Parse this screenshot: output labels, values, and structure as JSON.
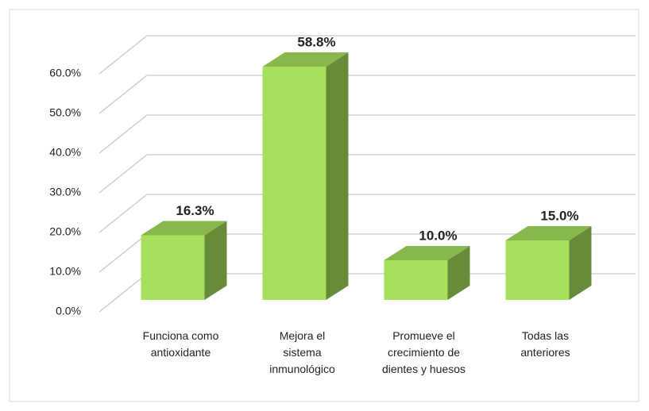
{
  "chart_data": {
    "type": "bar3d",
    "categories": [
      "Funciona como antioxidante",
      "Mejora el sistema inmunológico",
      "Promueve el crecimiento de dientes y huesos",
      "Todas las anteriores"
    ],
    "values": [
      16.3,
      58.8,
      10.0,
      15.0
    ],
    "value_labels": [
      "16.3%",
      "58.8%",
      "10.0%",
      "15.0%"
    ],
    "color": "#a6e05c",
    "ylim": [
      0,
      60
    ],
    "yticks": [
      {
        "value": 0,
        "label": "0.0%"
      },
      {
        "value": 10,
        "label": "10.0%"
      },
      {
        "value": 20,
        "label": "20.0%"
      },
      {
        "value": 30,
        "label": "30.0%"
      },
      {
        "value": 40,
        "label": "40.0%"
      },
      {
        "value": 50,
        "label": "50.0%"
      },
      {
        "value": 60,
        "label": "60.0%"
      }
    ],
    "grid": true
  }
}
